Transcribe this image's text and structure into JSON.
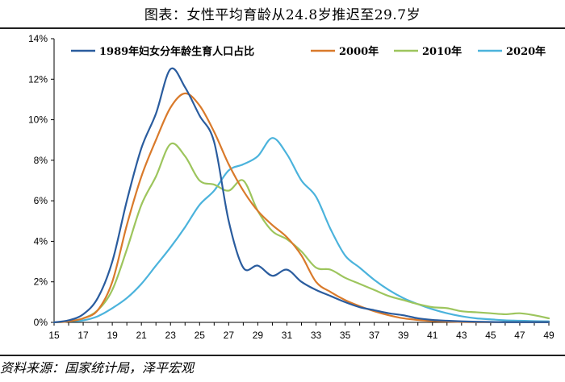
{
  "title": "图表：女性平均育龄从24.8岁推迟至29.7岁",
  "source": "资料来源：国家统计局，泽平宏观",
  "chart_data": {
    "type": "line",
    "xlabel": "",
    "ylabel": "",
    "xlim": [
      15,
      49
    ],
    "ylim": [
      0,
      14
    ],
    "x_ticks": [
      "15",
      "17",
      "19",
      "21",
      "23",
      "25",
      "27",
      "29",
      "31",
      "33",
      "35",
      "37",
      "39",
      "41",
      "43",
      "45",
      "47",
      "49"
    ],
    "y_ticks": [
      "0%",
      "2%",
      "4%",
      "6%",
      "8%",
      "10%",
      "12%",
      "14%"
    ],
    "legend_position": "top",
    "series": [
      {
        "name": "1989年妇女分年龄生育人口占比",
        "color": "#2a5c9e",
        "points": [
          [
            15,
            0
          ],
          [
            16,
            0.1
          ],
          [
            17,
            0.4
          ],
          [
            18,
            1.2
          ],
          [
            19,
            3.0
          ],
          [
            20,
            6.0
          ],
          [
            21,
            8.6
          ],
          [
            22,
            10.3
          ],
          [
            23,
            12.5
          ],
          [
            24,
            11.6
          ],
          [
            25,
            10.2
          ],
          [
            26,
            8.9
          ],
          [
            27,
            5.0
          ],
          [
            28,
            2.7
          ],
          [
            29,
            2.8
          ],
          [
            30,
            2.3
          ],
          [
            31,
            2.6
          ],
          [
            32,
            2.0
          ],
          [
            33,
            1.6
          ],
          [
            34,
            1.3
          ],
          [
            35,
            1.0
          ],
          [
            36,
            0.75
          ],
          [
            37,
            0.6
          ],
          [
            38,
            0.45
          ],
          [
            39,
            0.35
          ],
          [
            40,
            0.2
          ],
          [
            41,
            0.12
          ],
          [
            42,
            0.08
          ],
          [
            43,
            0.05
          ],
          [
            44,
            0.03
          ],
          [
            45,
            0.02
          ],
          [
            46,
            0.01
          ],
          [
            47,
            0.01
          ],
          [
            48,
            0.01
          ],
          [
            49,
            0.01
          ]
        ]
      },
      {
        "name": "2000年",
        "color": "#d97a2b",
        "points": [
          [
            15,
            0
          ],
          [
            16,
            0.05
          ],
          [
            17,
            0.2
          ],
          [
            18,
            0.6
          ],
          [
            19,
            2.0
          ],
          [
            20,
            4.8
          ],
          [
            21,
            7.2
          ],
          [
            22,
            9.0
          ],
          [
            23,
            10.6
          ],
          [
            24,
            11.3
          ],
          [
            25,
            10.7
          ],
          [
            26,
            9.4
          ],
          [
            27,
            7.8
          ],
          [
            28,
            6.5
          ],
          [
            29,
            5.5
          ],
          [
            30,
            4.8
          ],
          [
            31,
            4.2
          ],
          [
            32,
            3.3
          ],
          [
            33,
            2.0
          ],
          [
            34,
            1.5
          ],
          [
            35,
            1.1
          ],
          [
            36,
            0.8
          ],
          [
            37,
            0.55
          ],
          [
            38,
            0.35
          ],
          [
            39,
            0.2
          ],
          [
            40,
            0.12
          ],
          [
            41,
            0.07
          ],
          [
            42,
            0.04
          ],
          [
            43,
            0.02
          ],
          [
            44,
            0.01
          ],
          [
            45,
            0.01
          ],
          [
            46,
            0.01
          ],
          [
            47,
            0.01
          ],
          [
            48,
            0.01
          ],
          [
            49,
            0.01
          ]
        ]
      },
      {
        "name": "2010年",
        "color": "#9dc55d",
        "points": [
          [
            15,
            0
          ],
          [
            16,
            0.05
          ],
          [
            17,
            0.2
          ],
          [
            18,
            0.6
          ],
          [
            19,
            1.6
          ],
          [
            20,
            3.6
          ],
          [
            21,
            5.8
          ],
          [
            22,
            7.2
          ],
          [
            23,
            8.8
          ],
          [
            24,
            8.2
          ],
          [
            25,
            7.0
          ],
          [
            26,
            6.8
          ],
          [
            27,
            6.5
          ],
          [
            28,
            7.0
          ],
          [
            29,
            5.5
          ],
          [
            30,
            4.5
          ],
          [
            31,
            4.1
          ],
          [
            32,
            3.5
          ],
          [
            33,
            2.7
          ],
          [
            34,
            2.6
          ],
          [
            35,
            2.2
          ],
          [
            36,
            1.9
          ],
          [
            37,
            1.6
          ],
          [
            38,
            1.3
          ],
          [
            39,
            1.1
          ],
          [
            40,
            0.9
          ],
          [
            41,
            0.75
          ],
          [
            42,
            0.7
          ],
          [
            43,
            0.55
          ],
          [
            44,
            0.5
          ],
          [
            45,
            0.45
          ],
          [
            46,
            0.4
          ],
          [
            47,
            0.45
          ],
          [
            48,
            0.35
          ],
          [
            49,
            0.2
          ]
        ]
      },
      {
        "name": "2020年",
        "color": "#4bb3dc",
        "points": [
          [
            15,
            0
          ],
          [
            16,
            0.05
          ],
          [
            17,
            0.1
          ],
          [
            18,
            0.3
          ],
          [
            19,
            0.7
          ],
          [
            20,
            1.2
          ],
          [
            21,
            1.9
          ],
          [
            22,
            2.8
          ],
          [
            23,
            3.7
          ],
          [
            24,
            4.7
          ],
          [
            25,
            5.8
          ],
          [
            26,
            6.5
          ],
          [
            27,
            7.5
          ],
          [
            28,
            7.8
          ],
          [
            29,
            8.2
          ],
          [
            30,
            9.1
          ],
          [
            31,
            8.3
          ],
          [
            32,
            7.0
          ],
          [
            33,
            6.2
          ],
          [
            34,
            4.6
          ],
          [
            35,
            3.3
          ],
          [
            36,
            2.7
          ],
          [
            37,
            2.1
          ],
          [
            38,
            1.6
          ],
          [
            39,
            1.2
          ],
          [
            40,
            0.9
          ],
          [
            41,
            0.65
          ],
          [
            42,
            0.45
          ],
          [
            43,
            0.3
          ],
          [
            44,
            0.2
          ],
          [
            45,
            0.15
          ],
          [
            46,
            0.1
          ],
          [
            47,
            0.08
          ],
          [
            48,
            0.06
          ],
          [
            49,
            0.05
          ]
        ]
      }
    ]
  }
}
